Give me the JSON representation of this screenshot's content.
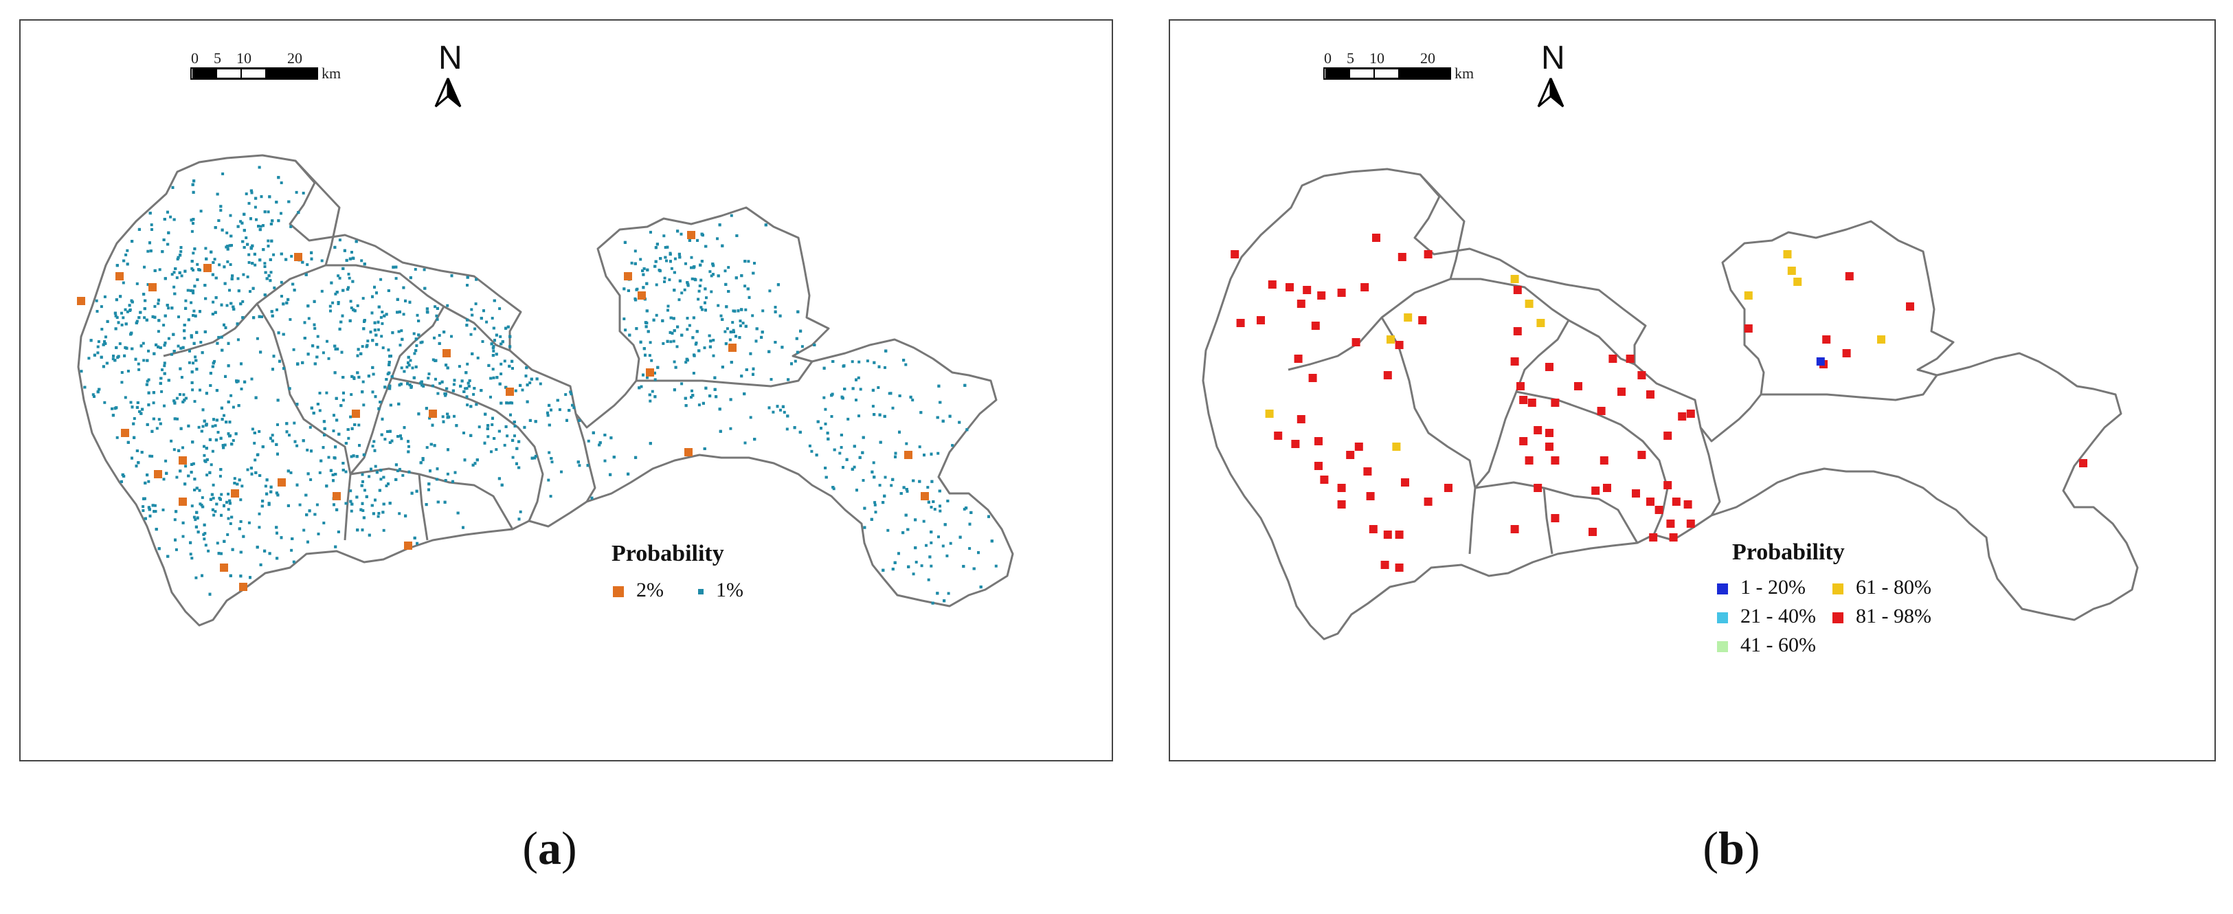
{
  "panels": [
    {
      "id": "a",
      "caption_letter": "a",
      "north_label": "N",
      "scale_bar": {
        "ticks": [
          "0",
          "5",
          "10",
          "20"
        ],
        "unit": "km"
      },
      "legend": {
        "title": "Probability",
        "items": [
          {
            "label": "2%",
            "color": "#e07020"
          },
          {
            "label": "1%",
            "color": "#1f8ba8"
          }
        ]
      },
      "colors": {
        "boundary": "#777777",
        "dense_points": "#1f8ba8",
        "sparse_points": "#e07020"
      }
    },
    {
      "id": "b",
      "caption_letter": "b",
      "north_label": "N",
      "scale_bar": {
        "ticks": [
          "0",
          "5",
          "10",
          "20"
        ],
        "unit": "km"
      },
      "legend": {
        "title": "Probability",
        "items": [
          {
            "label": "1 - 20%",
            "color": "#1a2bd6"
          },
          {
            "label": "61 - 80%",
            "color": "#f0c419"
          },
          {
            "label": "21 - 40%",
            "color": "#45c3e6"
          },
          {
            "label": "81 - 98%",
            "color": "#e3191c"
          },
          {
            "label": "41 - 60%",
            "color": "#b8f0a8"
          }
        ]
      },
      "colors": {
        "boundary": "#777777"
      }
    }
  ]
}
